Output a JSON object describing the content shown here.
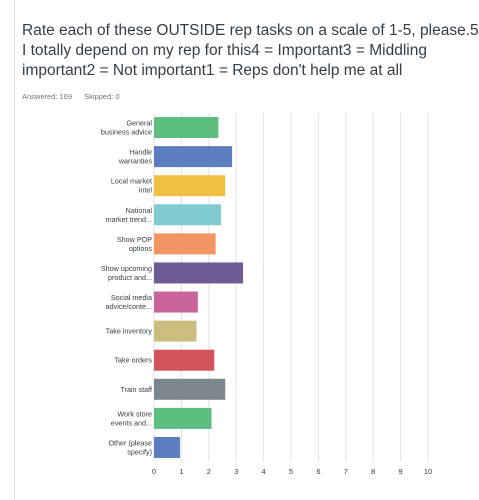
{
  "question": {
    "title": "Rate each of these OUTSIDE rep tasks on a scale of 1-5, please.5 = I totally depend on my rep for this4 = Important3 = Middling important2 = Not important1 = Reps don't help me at all"
  },
  "stats": {
    "answered": "Answered: 169",
    "skipped": "Skipped: 0"
  },
  "chart_data": {
    "type": "bar",
    "orientation": "horizontal",
    "categories": [
      [
        "General",
        "business advice"
      ],
      [
        "Handle",
        "warranties"
      ],
      [
        "Local market",
        "intel"
      ],
      [
        "National",
        "market trend..."
      ],
      [
        "Show POP",
        "options"
      ],
      [
        "Show upcoming",
        "product and..."
      ],
      [
        "Social media",
        "advice/conte..."
      ],
      [
        "Take inventory"
      ],
      [
        "Take orders"
      ],
      [
        "Train staff"
      ],
      [
        "Work store",
        "events and..."
      ],
      [
        "Other (please",
        "specify)"
      ]
    ],
    "values": [
      2.35,
      2.85,
      2.6,
      2.45,
      2.25,
      3.25,
      1.6,
      1.55,
      2.2,
      2.6,
      2.1,
      0.95
    ],
    "colors": [
      "#5cbf7f",
      "#5b7ec0",
      "#f0c043",
      "#7fcbd0",
      "#f39562",
      "#6d5c93",
      "#c9649a",
      "#cbbc7f",
      "#d4545c",
      "#7b868e",
      "#5cbf7f",
      "#5b7ec0"
    ],
    "xlim": [
      0,
      10
    ],
    "xticks": [
      0,
      1,
      2,
      3,
      4,
      5,
      6,
      7,
      8,
      9,
      10
    ],
    "grid": true,
    "legend": "none"
  }
}
